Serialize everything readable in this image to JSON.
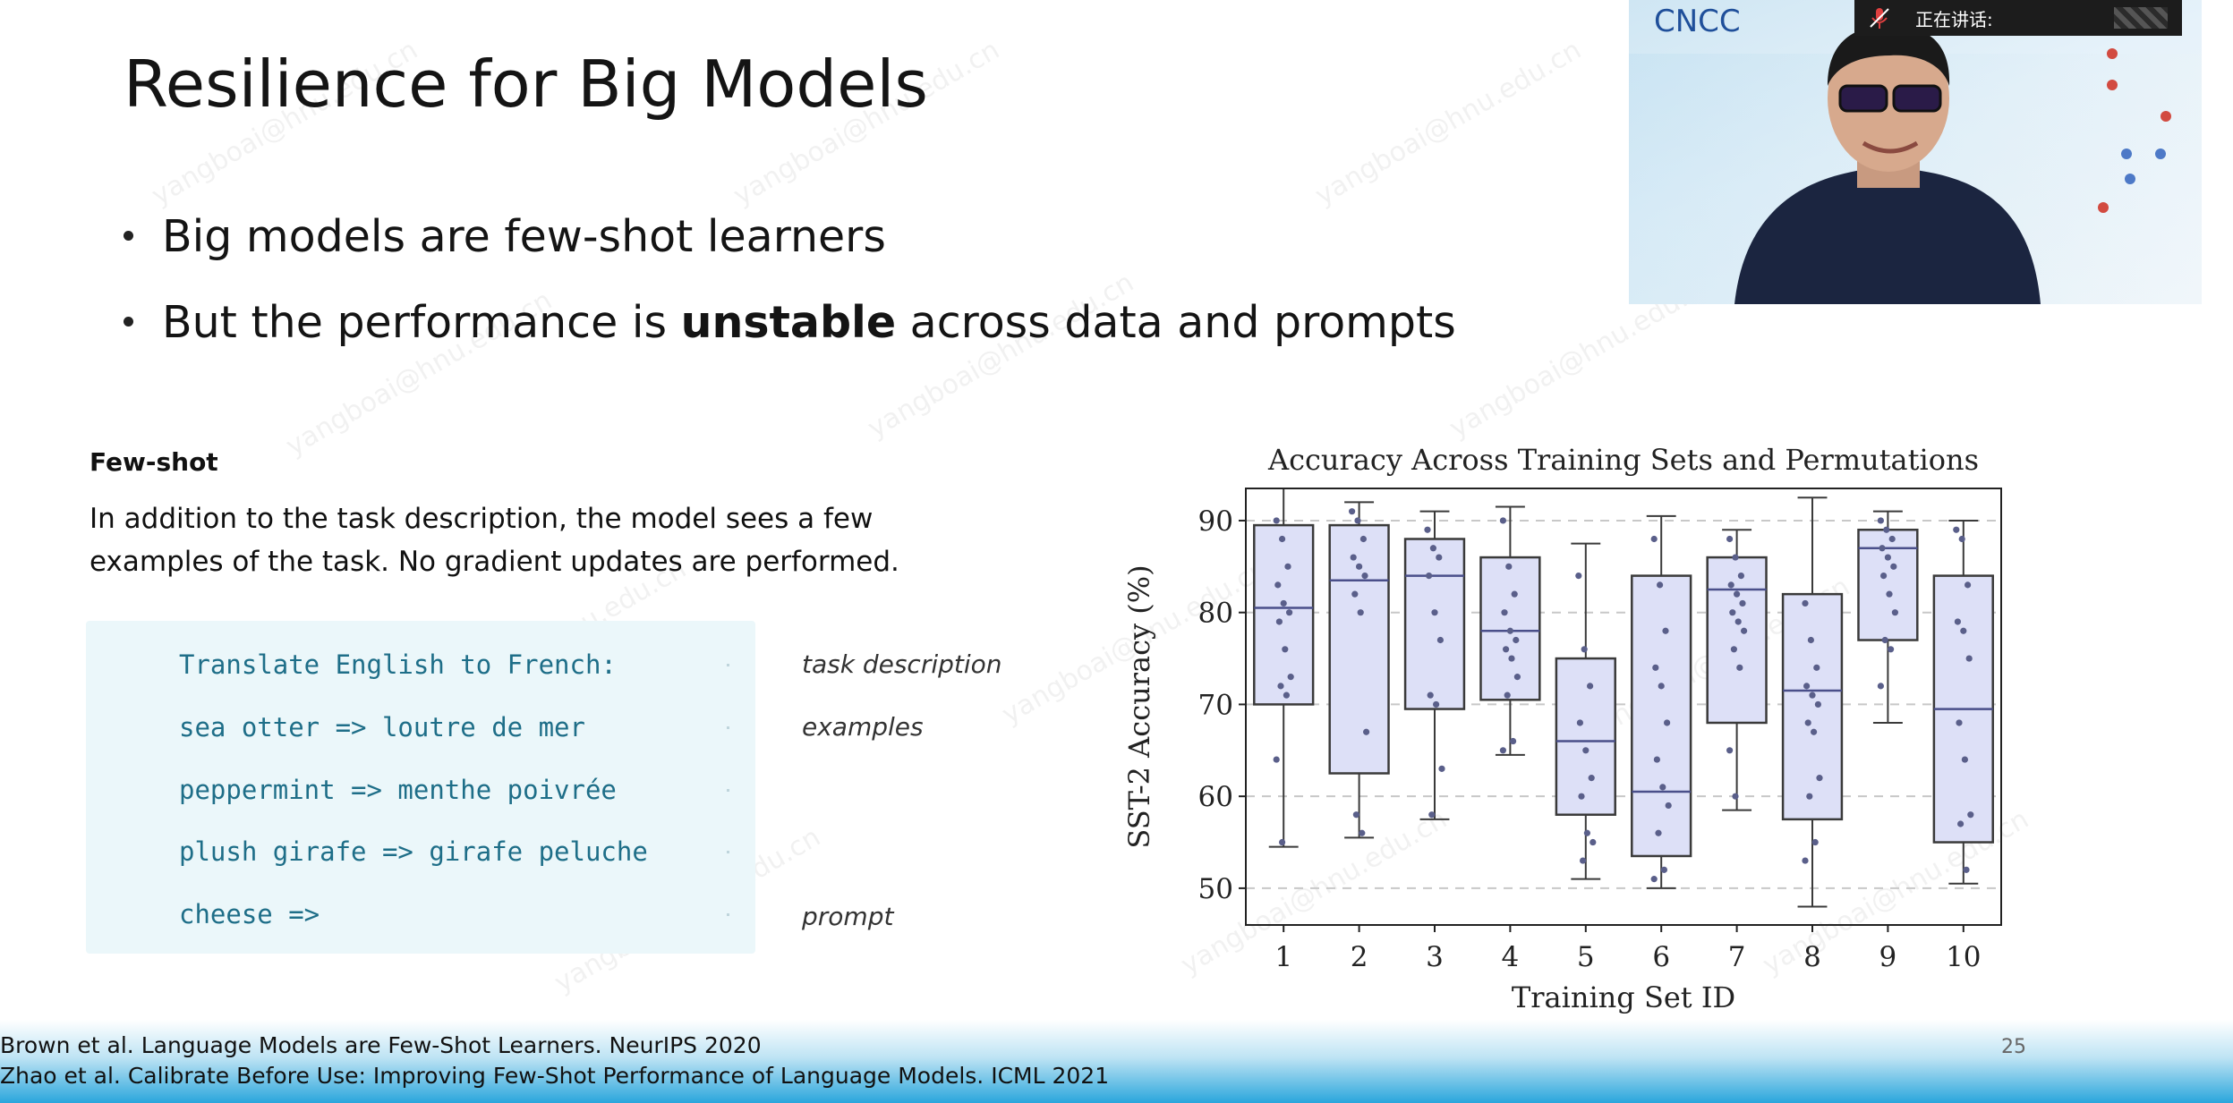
{
  "slide": {
    "title": "Resilience for Big Models",
    "bullets": [
      {
        "pre": "Big models are few-shot learners",
        "bold": "",
        "post": ""
      },
      {
        "pre": "But the performance is ",
        "bold": "unstable",
        "post": " across data and prompts"
      }
    ],
    "few_shot": {
      "heading": "Few-shot",
      "description": "In addition to the task description, the model sees a few examples of the task. No gradient updates are performed.",
      "code_lines": [
        "Translate English to French:",
        "sea otter => loutre de mer",
        "peppermint => menthe poivrée",
        "plush girafe => girafe peluche",
        "cheese =>"
      ],
      "annotations": [
        "task description",
        "examples",
        "prompt"
      ]
    },
    "references": [
      "Brown et al. Language Models are Few-Shot Learners. NeurIPS 2020",
      "Zhao et al. Calibrate Before Use: Improving Few-Shot Performance of Language Models. ICML 2021"
    ],
    "slide_number": "25",
    "watermark": "yangboai@hnu.edu.cn"
  },
  "video": {
    "logo_text": "CNCC",
    "speaker_label": "正在讲话:"
  },
  "colors": {
    "box_fill": "#dde0f7",
    "box_edge": "#3a3a3a",
    "point": "#5a5f8a",
    "code_text": "#1e6e88",
    "code_bg": "#ebf7fa"
  },
  "chart_data": {
    "type": "box",
    "title": "Accuracy Across Training Sets and Permutations",
    "xlabel": "Training Set ID",
    "ylabel": "SST-2 Accuracy (%)",
    "ylim": [
      46,
      93.5
    ],
    "yticks": [
      50,
      60,
      70,
      80,
      90
    ],
    "grid": "horizontal dashed",
    "categories": [
      "1",
      "2",
      "3",
      "4",
      "5",
      "6",
      "7",
      "8",
      "9",
      "10"
    ],
    "boxes": [
      {
        "min": 54.5,
        "q1": 70,
        "median": 80.5,
        "q3": 89.5,
        "max": 93.5,
        "points": [
          90,
          88,
          85,
          83,
          81,
          80,
          79,
          76,
          73,
          72,
          71,
          64,
          55
        ]
      },
      {
        "min": 55.5,
        "q1": 62.5,
        "median": 83.5,
        "q3": 89.5,
        "max": 92,
        "points": [
          91,
          90,
          88,
          86,
          85,
          84,
          82,
          80,
          67,
          58,
          56
        ]
      },
      {
        "min": 57.5,
        "q1": 69.5,
        "median": 84,
        "q3": 88,
        "max": 91,
        "points": [
          89,
          87,
          86,
          84,
          80,
          77,
          71,
          70,
          63,
          58
        ]
      },
      {
        "min": 64.5,
        "q1": 70.5,
        "median": 78,
        "q3": 86,
        "max": 91.5,
        "points": [
          90,
          85,
          82,
          80,
          78,
          77,
          76,
          75,
          73,
          71,
          66,
          65
        ]
      },
      {
        "min": 51,
        "q1": 58,
        "median": 66,
        "q3": 75,
        "max": 87.5,
        "points": [
          84,
          76,
          72,
          68,
          65,
          62,
          60,
          56,
          55,
          53
        ]
      },
      {
        "min": 50,
        "q1": 53.5,
        "median": 60.5,
        "q3": 84,
        "max": 90.5,
        "points": [
          88,
          83,
          78,
          74,
          72,
          68,
          64,
          61,
          59,
          56,
          52,
          51
        ]
      },
      {
        "min": 58.5,
        "q1": 68,
        "median": 82.5,
        "q3": 86,
        "max": 89,
        "points": [
          88,
          86,
          84,
          83,
          82,
          81,
          80,
          79,
          78,
          76,
          74,
          65,
          60
        ]
      },
      {
        "min": 48,
        "q1": 57.5,
        "median": 71.5,
        "q3": 82,
        "max": 92.5,
        "points": [
          81,
          77,
          74,
          72,
          71,
          70,
          68,
          67,
          62,
          60,
          55,
          53
        ]
      },
      {
        "min": 68,
        "q1": 77,
        "median": 87,
        "q3": 89,
        "max": 91,
        "points": [
          90,
          89,
          88,
          87,
          86,
          85,
          84,
          82,
          80,
          77,
          76,
          72
        ]
      },
      {
        "min": 50.5,
        "q1": 55,
        "median": 69.5,
        "q3": 84,
        "max": 90,
        "points": [
          89,
          88,
          83,
          79,
          78,
          75,
          68,
          64,
          58,
          57,
          52
        ]
      }
    ]
  }
}
